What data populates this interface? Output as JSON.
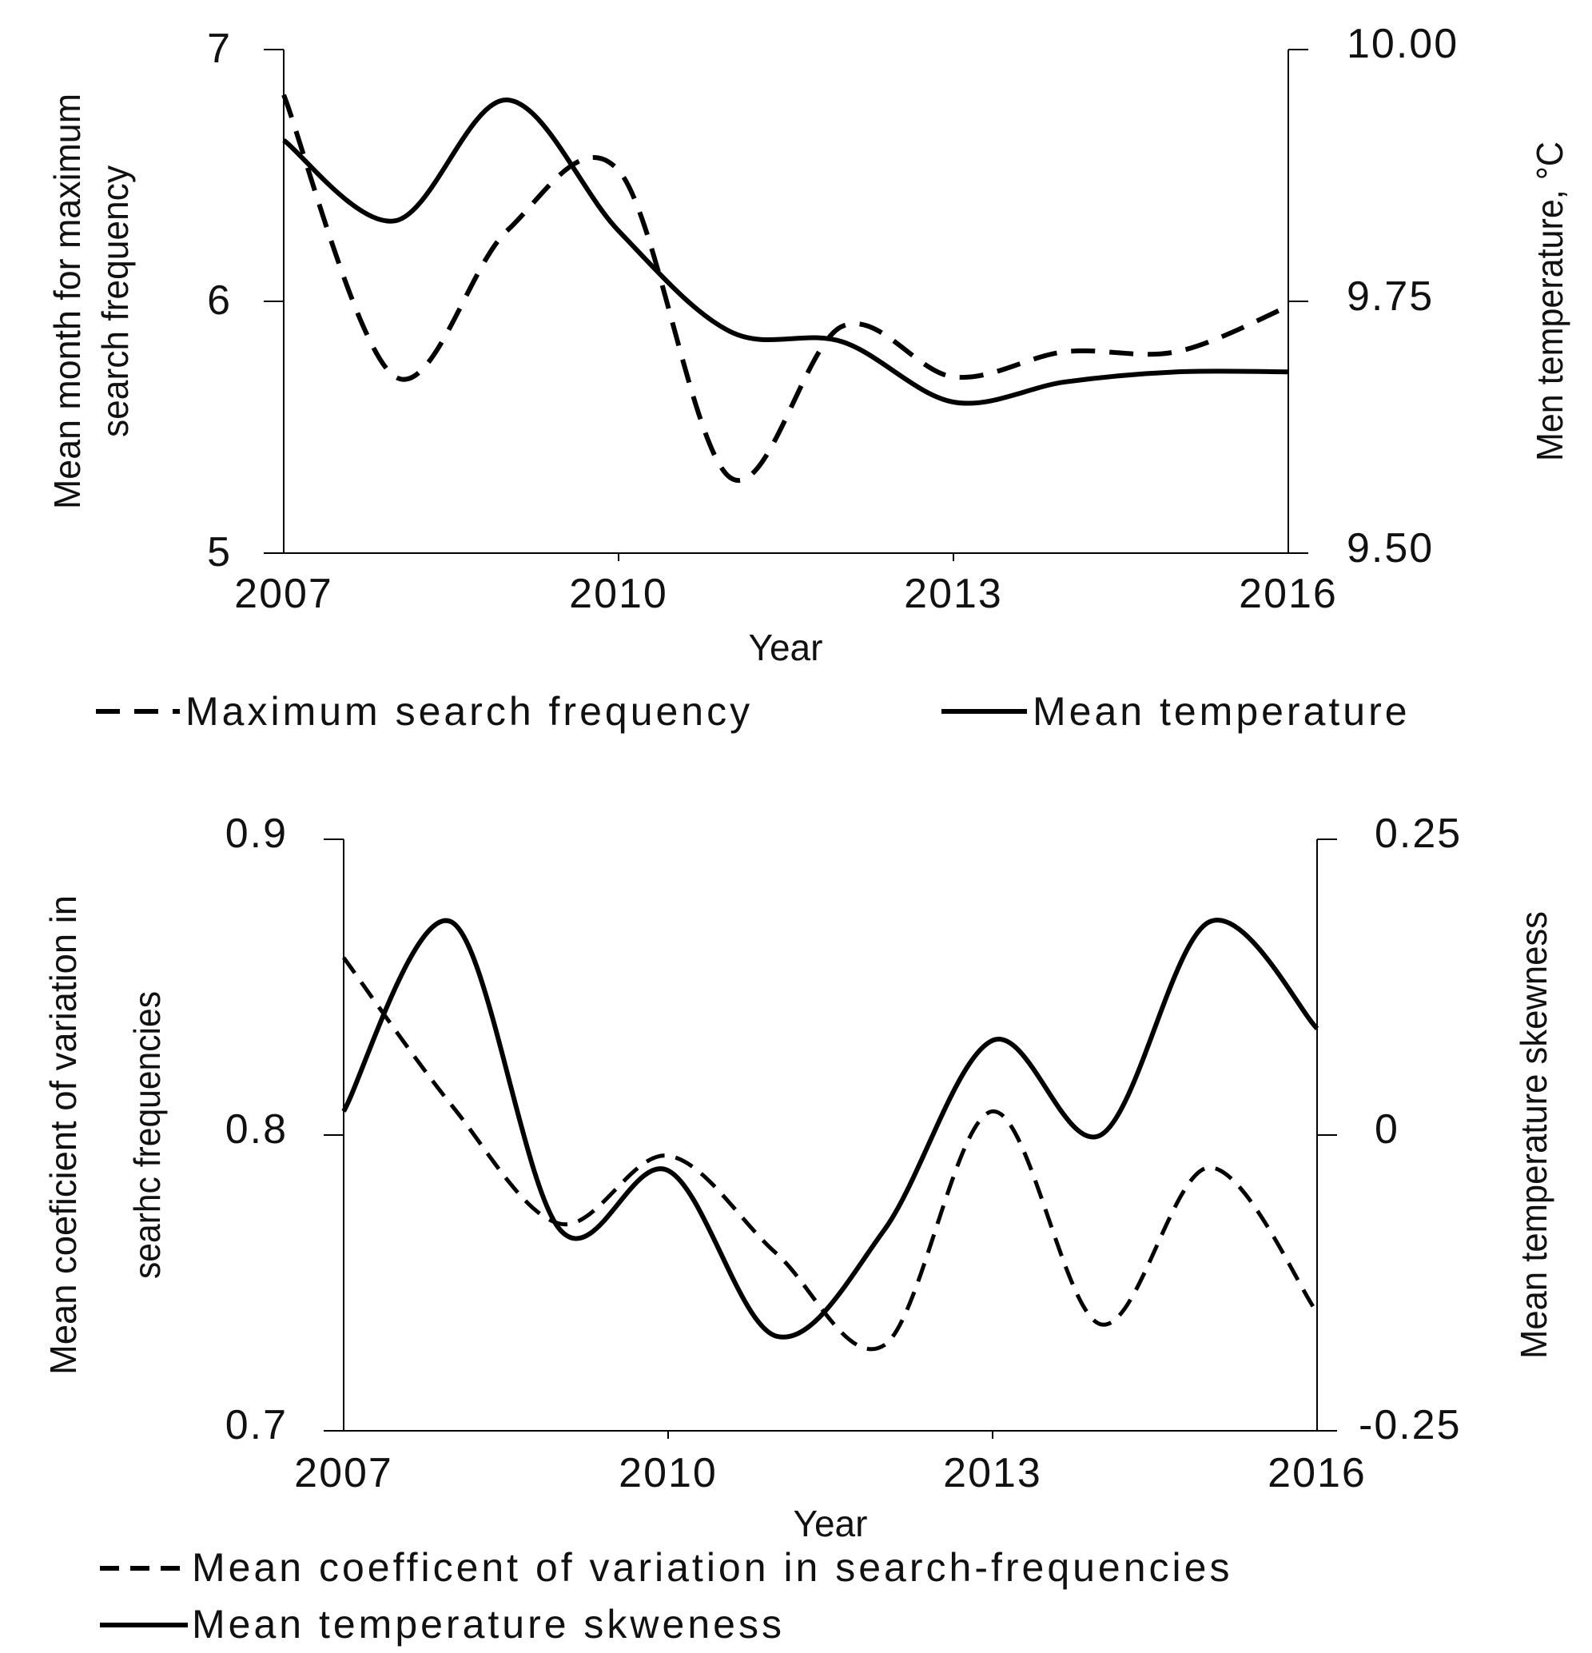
{
  "chart_data": [
    {
      "type": "line",
      "title": "",
      "xlabel": "Year",
      "ylabel_left": "Mean month for maximum search frequency",
      "ylabel_left_lines": [
        "Mean month for maximum",
        "search frequency"
      ],
      "ylabel_right": "Men temperature, °C",
      "xlim": [
        2007,
        2016
      ],
      "ylim_left": [
        5,
        7
      ],
      "ylim_right": [
        9.5,
        10.0
      ],
      "x_ticks": [
        "2007",
        "2010",
        "2013",
        "2016"
      ],
      "x_tick_values": [
        2007,
        2010,
        2013,
        2016
      ],
      "y_left_ticks": [
        "5",
        "6",
        "7"
      ],
      "y_left_tick_values": [
        5,
        6,
        7
      ],
      "y_right_ticks": [
        "9.50",
        "9.75",
        "10.00"
      ],
      "y_right_tick_values": [
        9.5,
        9.75,
        10.0
      ],
      "series": [
        {
          "name": "Maximum search frequency",
          "axis": "left",
          "style": "dashed",
          "x": [
            2007,
            2008,
            2009,
            2010,
            2011,
            2012,
            2013,
            2014,
            2015,
            2016
          ],
          "values": [
            6.82,
            5.7,
            6.28,
            6.52,
            5.3,
            5.9,
            5.7,
            5.8,
            5.8,
            5.98
          ]
        },
        {
          "name": "Mean temperature",
          "axis": "right",
          "style": "solid",
          "x": [
            2007,
            2008,
            2009,
            2010,
            2011,
            2012,
            2013,
            2014,
            2015,
            2016
          ],
          "values": [
            9.91,
            9.83,
            9.95,
            9.82,
            9.72,
            9.71,
            9.65,
            9.67,
            9.68,
            9.68
          ]
        }
      ],
      "legend": [
        "Maximum search frequency",
        "Mean temperature"
      ],
      "legend_position": "bottom"
    },
    {
      "type": "line",
      "title": "",
      "xlabel": "Year",
      "ylabel_left": "Mean coeficient of variation in searhc frequencies",
      "ylabel_left_lines": [
        "Mean coeficient of variation in",
        "searhc frequencies"
      ],
      "ylabel_right": "Mean temperature skewness",
      "xlim": [
        2007,
        2016
      ],
      "ylim_left": [
        0.7,
        0.9
      ],
      "ylim_right": [
        -0.25,
        0.25
      ],
      "x_ticks": [
        "2007",
        "2010",
        "2013",
        "2016"
      ],
      "x_tick_values": [
        2007,
        2010,
        2013,
        2016
      ],
      "y_left_ticks": [
        "0.7",
        "0.8",
        "0.9"
      ],
      "y_left_tick_values": [
        0.7,
        0.8,
        0.9
      ],
      "y_right_ticks": [
        "-0.25",
        "0",
        "0.25"
      ],
      "y_right_tick_values": [
        -0.25,
        0,
        0.25
      ],
      "series": [
        {
          "name": "Mean coefficent of variation in search-frequencies",
          "axis": "left",
          "style": "dashed",
          "x": [
            2007,
            2008,
            2009,
            2010,
            2011,
            2012,
            2013,
            2014,
            2015,
            2016
          ],
          "values": [
            0.86,
            0.81,
            0.77,
            0.793,
            0.76,
            0.729,
            0.808,
            0.736,
            0.789,
            0.74
          ]
        },
        {
          "name": "Mean temperature skweness",
          "axis": "right",
          "style": "solid",
          "x": [
            2007,
            2008,
            2009,
            2010,
            2011,
            2012,
            2013,
            2014,
            2015,
            2016
          ],
          "values": [
            0.02,
            0.18,
            -0.08,
            -0.03,
            -0.17,
            -0.08,
            0.08,
            0.0,
            0.18,
            0.09
          ]
        }
      ],
      "legend": [
        "Mean coefficent of variation in search-frequencies",
        "Mean temperature skweness"
      ],
      "legend_position": "bottom"
    }
  ]
}
